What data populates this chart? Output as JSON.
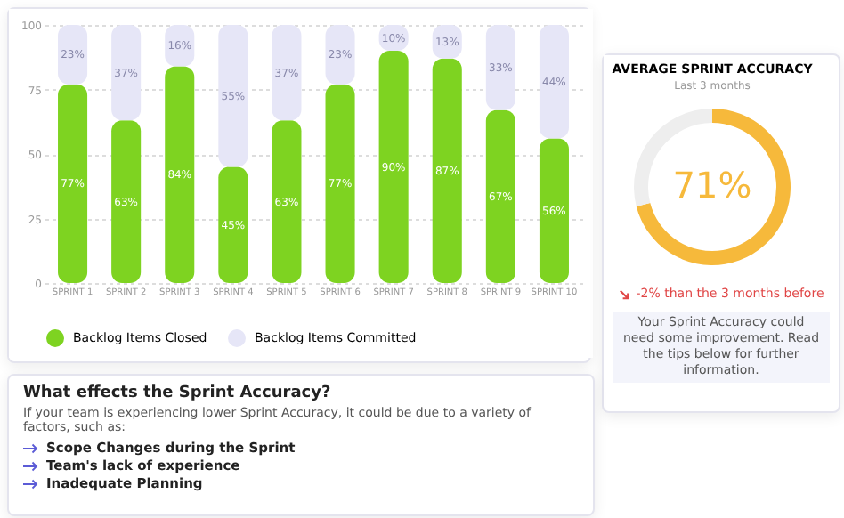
{
  "chart_data": [
    {
      "type": "bar",
      "stacked": true,
      "categories": [
        "SPRINT 1",
        "SPRINT 2",
        "SPRINT 3",
        "SPRINT 4",
        "SPRINT 5",
        "SPRINT 6",
        "SPRINT 7",
        "SPRINT 8",
        "SPRINT 9",
        "SPRINT 10"
      ],
      "series": [
        {
          "name": "Backlog Items Closed",
          "color": "#7ed321",
          "values": [
            77,
            63,
            84,
            45,
            63,
            77,
            90,
            87,
            67,
            56
          ],
          "value_labels": [
            "77%",
            "63%",
            "84%",
            "45%",
            "63%",
            "77%",
            "90%",
            "87%",
            "67%",
            "56%"
          ]
        },
        {
          "name": "Backlog Items Committed",
          "color": "#e6e6f7",
          "values": [
            23,
            37,
            16,
            55,
            37,
            23,
            10,
            13,
            33,
            44
          ],
          "value_labels": [
            "23%",
            "37%",
            "16%",
            "55%",
            "37%",
            "23%",
            "10%",
            "13%",
            "33%",
            "44%"
          ]
        }
      ],
      "ylim": [
        0,
        100
      ],
      "yticks": [
        0,
        25,
        50,
        75,
        100
      ],
      "grid": "y",
      "legend": "bottom"
    },
    {
      "type": "donut",
      "title": "AVERAGE SPRINT ACCURACY",
      "subtitle": "Last 3 months",
      "categories": [
        null,
        null
      ],
      "values": [
        71,
        29
      ],
      "colors": [
        "#f6b93b",
        "#eeeeee"
      ],
      "value_labels": [
        "71%",
        null
      ],
      "annotations": [
        "-2% than the 3 months before",
        "Your Sprint Accuracy could need some improvement. Read the tips below for further information."
      ]
    },
    {
      "type": "other",
      "title": "What effects the Sprint Accuracy?",
      "annotations": [
        "If your team is experiencing lower Sprint Accuracy, it could be due to a variety of factors, such as:",
        "Scope Changes during the Sprint",
        "Team's lack of experience",
        "Inadequate Planning"
      ]
    }
  ]
}
